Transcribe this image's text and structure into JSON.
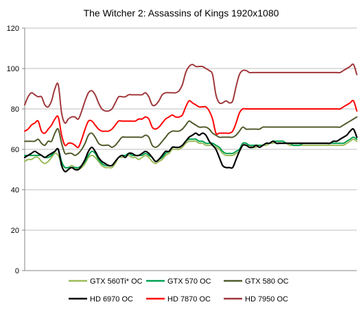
{
  "chart_data": {
    "type": "line",
    "title": "The Witcher 2: Assassins of Kings 1920x1080",
    "xlabel": "",
    "ylabel": "",
    "ylim": [
      0,
      120
    ],
    "yticks": [
      0,
      20,
      40,
      60,
      80,
      100,
      120
    ],
    "grid": "horizontal",
    "legend_position": "bottom",
    "x": [
      0,
      1,
      2,
      3,
      4,
      5,
      6,
      7,
      8,
      9,
      10,
      11,
      12,
      13,
      14,
      15,
      16,
      17,
      18,
      19,
      20,
      21,
      22,
      23,
      24,
      25,
      26,
      27,
      28,
      29,
      30,
      31,
      32,
      33,
      34,
      35,
      36,
      37,
      38,
      39,
      40,
      41,
      42,
      43,
      44,
      45,
      46,
      47,
      48,
      49,
      50,
      51,
      52,
      53,
      54,
      55,
      56,
      57,
      58,
      59,
      60,
      61,
      62,
      63,
      64,
      65,
      66,
      67,
      68,
      69,
      70,
      71,
      72,
      73,
      74,
      75,
      76,
      77,
      78,
      79,
      80,
      81,
      82,
      83,
      84,
      85,
      86,
      87,
      88,
      89,
      90,
      91,
      92,
      93,
      94,
      95,
      96,
      97,
      98,
      99
    ],
    "series": [
      {
        "name": "GTX 560Ti* OC",
        "color": "#9bbb59",
        "width": 2,
        "values": [
          54,
          55,
          55,
          56,
          56,
          54,
          53,
          54,
          56,
          58,
          57,
          53,
          51,
          51,
          52,
          51,
          50,
          51,
          53,
          56,
          57,
          56,
          54,
          52,
          51,
          51,
          51,
          53,
          56,
          56,
          57,
          57,
          56,
          56,
          55,
          56,
          57,
          56,
          54,
          53,
          54,
          55,
          57,
          58,
          60,
          60,
          60,
          61,
          63,
          64,
          64,
          64,
          63,
          63,
          62,
          62,
          62,
          61,
          60,
          58,
          57,
          57,
          57,
          58,
          59,
          62,
          62,
          62,
          61,
          61,
          62,
          62,
          62,
          63,
          63,
          64,
          64,
          64,
          63,
          62,
          62,
          62,
          62,
          62,
          62,
          62,
          62,
          62,
          62,
          62,
          62,
          62,
          62,
          62,
          62,
          62,
          63,
          64,
          65,
          64
        ]
      },
      {
        "name": "GTX 570 OC",
        "color": "#00a050",
        "width": 2,
        "values": [
          57,
          57,
          57,
          57,
          57,
          57,
          56,
          56,
          57,
          59,
          60,
          54,
          51,
          51,
          51,
          51,
          51,
          52,
          54,
          57,
          59,
          58,
          55,
          53,
          52,
          52,
          52,
          54,
          56,
          57,
          57,
          58,
          57,
          57,
          57,
          57,
          58,
          57,
          56,
          54,
          55,
          56,
          58,
          59,
          61,
          61,
          61,
          62,
          64,
          65,
          65,
          65,
          64,
          64,
          63,
          63,
          63,
          62,
          61,
          59,
          58,
          58,
          58,
          59,
          60,
          63,
          63,
          62,
          62,
          62,
          62,
          62,
          63,
          63,
          64,
          64,
          64,
          64,
          63,
          63,
          62,
          62,
          62,
          63,
          63,
          63,
          63,
          63,
          63,
          63,
          63,
          63,
          63,
          63,
          63,
          63,
          64,
          65,
          66,
          65
        ]
      },
      {
        "name": "GTX 580 OC",
        "color": "#4f5b2b",
        "width": 2,
        "values": [
          64,
          64,
          64,
          64,
          65,
          63,
          62,
          64,
          64,
          68,
          70,
          63,
          58,
          58,
          58,
          57,
          58,
          60,
          63,
          67,
          68,
          66,
          63,
          62,
          62,
          62,
          61,
          62,
          64,
          66,
          66,
          66,
          66,
          66,
          66,
          66,
          67,
          66,
          62,
          61,
          62,
          64,
          66,
          68,
          69,
          69,
          69,
          70,
          72,
          74,
          73,
          72,
          71,
          71,
          71,
          70,
          68,
          67,
          66,
          66,
          66,
          66,
          66,
          67,
          69,
          71,
          70,
          70,
          70,
          70,
          70,
          71,
          71,
          71,
          71,
          71,
          71,
          71,
          71,
          71,
          71,
          71,
          71,
          71,
          71,
          71,
          71,
          71,
          71,
          71,
          71,
          71,
          71,
          71,
          71,
          72,
          73,
          74,
          75,
          76
        ]
      },
      {
        "name": "HD 6970 OC",
        "color": "#000000",
        "width": 2.2,
        "values": [
          56,
          57,
          58,
          59,
          58,
          57,
          56,
          57,
          58,
          59,
          60,
          52,
          49,
          50,
          51,
          50,
          50,
          52,
          55,
          59,
          61,
          59,
          56,
          54,
          53,
          52,
          52,
          54,
          56,
          57,
          56,
          58,
          58,
          57,
          57,
          58,
          59,
          58,
          56,
          54,
          55,
          57,
          59,
          59,
          61,
          61,
          61,
          62,
          64,
          66,
          67,
          68,
          67,
          68,
          67,
          64,
          62,
          60,
          56,
          52,
          51,
          51,
          51,
          55,
          59,
          62,
          62,
          61,
          61,
          62,
          61,
          62,
          63,
          63,
          64,
          63,
          63,
          63,
          63,
          63,
          63,
          63,
          63,
          63,
          63,
          63,
          63,
          63,
          63,
          63,
          63,
          63,
          64,
          64,
          65,
          66,
          67,
          69,
          70,
          66
        ]
      },
      {
        "name": "HD 7870 OC",
        "color": "#ff0000",
        "width": 2,
        "values": [
          69,
          70,
          72,
          73,
          74,
          69,
          68,
          70,
          72,
          75,
          76,
          67,
          62,
          63,
          63,
          62,
          61,
          65,
          70,
          74,
          74,
          72,
          70,
          69,
          69,
          69,
          70,
          72,
          74,
          74,
          74,
          74,
          74,
          74,
          75,
          75,
          76,
          75,
          71,
          70,
          71,
          73,
          75,
          76,
          77,
          76,
          76,
          77,
          81,
          84,
          83,
          82,
          81,
          81,
          81,
          79,
          75,
          68,
          68,
          68,
          68,
          68,
          69,
          73,
          78,
          80,
          80,
          80,
          80,
          80,
          80,
          80,
          80,
          80,
          80,
          80,
          80,
          80,
          80,
          80,
          80,
          80,
          80,
          80,
          80,
          80,
          80,
          80,
          80,
          80,
          80,
          80,
          80,
          80,
          80,
          81,
          82,
          83,
          84,
          79
        ]
      },
      {
        "name": "HD 7950 OC",
        "color": "#a0373a",
        "width": 2,
        "values": [
          82,
          86,
          88,
          87,
          86,
          86,
          82,
          81,
          84,
          90,
          92,
          78,
          73,
          75,
          76,
          76,
          75,
          79,
          84,
          88,
          89,
          87,
          83,
          80,
          79,
          79,
          80,
          83,
          86,
          86,
          86,
          87,
          87,
          87,
          87,
          87,
          88,
          86,
          82,
          82,
          84,
          87,
          88,
          88,
          88,
          88,
          89,
          92,
          98,
          101,
          102,
          101,
          101,
          101,
          100,
          99,
          97,
          87,
          83,
          83,
          84,
          83,
          84,
          91,
          97,
          99,
          99,
          98,
          98,
          98,
          98,
          98,
          98,
          98,
          98,
          98,
          98,
          98,
          98,
          98,
          98,
          98,
          98,
          98,
          98,
          98,
          98,
          98,
          98,
          98,
          98,
          98,
          98,
          98,
          98,
          99,
          100,
          101,
          102,
          97
        ]
      }
    ]
  }
}
